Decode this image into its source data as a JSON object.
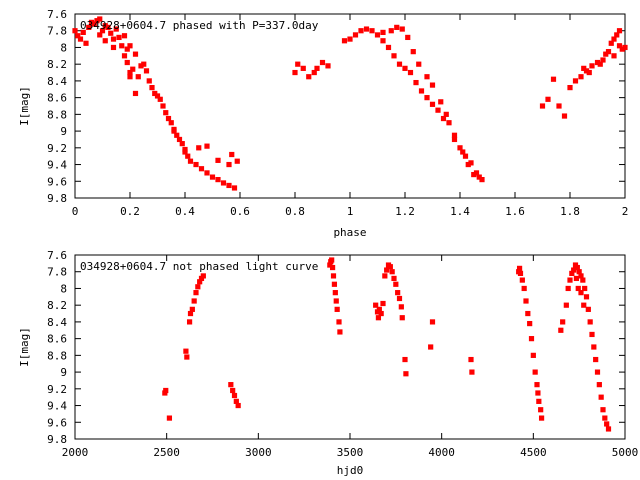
{
  "chart_data": [
    {
      "type": "scatter",
      "title": "034928+0604.7 phased with P=337.0day",
      "xlabel": "phase",
      "ylabel": "I[mag]",
      "xlim": [
        0,
        2
      ],
      "ylim": [
        9.8,
        7.6
      ],
      "y_inverted": true,
      "grid": false,
      "marker_color": "#ff0000",
      "x_ticks": [
        {
          "value": 0,
          "label": "0"
        },
        {
          "value": 0.2,
          "label": "0.2"
        },
        {
          "value": 0.4,
          "label": "0.4"
        },
        {
          "value": 0.6,
          "label": "0.6"
        },
        {
          "value": 0.8,
          "label": "0.8"
        },
        {
          "value": 1,
          "label": "1"
        },
        {
          "value": 1.2,
          "label": "1.2"
        },
        {
          "value": 1.4,
          "label": "1.4"
        },
        {
          "value": 1.6,
          "label": "1.6"
        },
        {
          "value": 1.8,
          "label": "1.8"
        },
        {
          "value": 2,
          "label": "2"
        }
      ],
      "y_ticks": [
        {
          "value": 7.6,
          "label": "7.6"
        },
        {
          "value": 7.8,
          "label": "7.8"
        },
        {
          "value": 8,
          "label": "8"
        },
        {
          "value": 8.2,
          "label": "8.2"
        },
        {
          "value": 8.4,
          "label": "8.4"
        },
        {
          "value": 8.6,
          "label": "8.6"
        },
        {
          "value": 8.8,
          "label": "8.8"
        },
        {
          "value": 9,
          "label": "9"
        },
        {
          "value": 9.2,
          "label": "9.2"
        },
        {
          "value": 9.4,
          "label": "9.4"
        },
        {
          "value": 9.6,
          "label": "9.6"
        },
        {
          "value": 9.8,
          "label": "9.8"
        }
      ],
      "points": [
        [
          0.0,
          7.8
        ],
        [
          0.01,
          7.86
        ],
        [
          0.02,
          7.9
        ],
        [
          0.03,
          7.82
        ],
        [
          0.04,
          7.95
        ],
        [
          0.05,
          7.76
        ],
        [
          0.06,
          7.7
        ],
        [
          0.07,
          7.72
        ],
        [
          0.08,
          7.68
        ],
        [
          0.09,
          7.66
        ],
        [
          0.09,
          7.85
        ],
        [
          0.1,
          7.8
        ],
        [
          0.11,
          7.74
        ],
        [
          0.12,
          7.76
        ],
        [
          0.13,
          7.83
        ],
        [
          0.14,
          7.9
        ],
        [
          0.15,
          7.78
        ],
        [
          0.16,
          7.88
        ],
        [
          0.17,
          7.98
        ],
        [
          0.18,
          7.86
        ],
        [
          0.19,
          8.02
        ],
        [
          0.2,
          7.98
        ],
        [
          0.11,
          7.92
        ],
        [
          0.14,
          8.0
        ],
        [
          0.18,
          8.1
        ],
        [
          0.19,
          8.18
        ],
        [
          0.2,
          8.3
        ],
        [
          0.21,
          8.26
        ],
        [
          0.22,
          8.08
        ],
        [
          0.23,
          8.35
        ],
        [
          0.24,
          8.22
        ],
        [
          0.25,
          8.2
        ],
        [
          0.26,
          8.28
        ],
        [
          0.27,
          8.4
        ],
        [
          0.28,
          8.48
        ],
        [
          0.29,
          8.55
        ],
        [
          0.3,
          8.58
        ],
        [
          0.31,
          8.62
        ],
        [
          0.32,
          8.7
        ],
        [
          0.33,
          8.78
        ],
        [
          0.34,
          8.85
        ],
        [
          0.35,
          8.9
        ],
        [
          0.36,
          9.0
        ],
        [
          0.37,
          9.05
        ],
        [
          0.38,
          9.1
        ],
        [
          0.39,
          9.15
        ],
        [
          0.4,
          9.22
        ],
        [
          0.41,
          9.3
        ],
        [
          0.42,
          9.36
        ],
        [
          0.44,
          9.4
        ],
        [
          0.46,
          9.45
        ],
        [
          0.48,
          9.5
        ],
        [
          0.5,
          9.55
        ],
        [
          0.52,
          9.58
        ],
        [
          0.54,
          9.62
        ],
        [
          0.56,
          9.65
        ],
        [
          0.58,
          9.68
        ],
        [
          0.2,
          8.35
        ],
        [
          0.22,
          8.55
        ],
        [
          0.36,
          8.98
        ],
        [
          0.4,
          9.25
        ],
        [
          0.48,
          9.18
        ],
        [
          0.52,
          9.35
        ],
        [
          0.56,
          9.4
        ],
        [
          0.57,
          9.28
        ],
        [
          0.59,
          9.36
        ],
        [
          0.45,
          9.2
        ],
        [
          0.8,
          8.3
        ],
        [
          0.81,
          8.2
        ],
        [
          0.83,
          8.25
        ],
        [
          0.85,
          8.35
        ],
        [
          0.87,
          8.3
        ],
        [
          0.88,
          8.25
        ],
        [
          0.9,
          8.18
        ],
        [
          0.92,
          8.22
        ],
        [
          0.98,
          7.92
        ],
        [
          1.0,
          7.9
        ],
        [
          1.02,
          7.85
        ],
        [
          1.04,
          7.8
        ],
        [
          1.06,
          7.78
        ],
        [
          1.08,
          7.8
        ],
        [
          1.1,
          7.85
        ],
        [
          1.12,
          7.92
        ],
        [
          1.14,
          8.0
        ],
        [
          1.16,
          8.1
        ],
        [
          1.18,
          8.2
        ],
        [
          1.2,
          8.25
        ],
        [
          1.22,
          8.3
        ],
        [
          1.24,
          8.42
        ],
        [
          1.26,
          8.52
        ],
        [
          1.28,
          8.6
        ],
        [
          1.3,
          8.68
        ],
        [
          1.32,
          8.75
        ],
        [
          1.34,
          8.85
        ],
        [
          1.36,
          8.9
        ],
        [
          1.38,
          9.05
        ],
        [
          1.4,
          9.2
        ],
        [
          1.42,
          9.3
        ],
        [
          1.44,
          9.38
        ],
        [
          1.46,
          9.5
        ],
        [
          1.47,
          9.55
        ],
        [
          1.12,
          7.82
        ],
        [
          1.15,
          7.8
        ],
        [
          1.17,
          7.76
        ],
        [
          1.19,
          7.78
        ],
        [
          1.21,
          7.88
        ],
        [
          1.23,
          8.05
        ],
        [
          1.25,
          8.2
        ],
        [
          1.28,
          8.35
        ],
        [
          1.3,
          8.45
        ],
        [
          1.33,
          8.65
        ],
        [
          1.35,
          8.8
        ],
        [
          1.38,
          9.1
        ],
        [
          1.41,
          9.25
        ],
        [
          1.43,
          9.4
        ],
        [
          1.45,
          9.52
        ],
        [
          1.48,
          9.58
        ],
        [
          1.7,
          8.7
        ],
        [
          1.72,
          8.62
        ],
        [
          1.74,
          8.38
        ],
        [
          1.76,
          8.7
        ],
        [
          1.78,
          8.82
        ],
        [
          1.8,
          8.48
        ],
        [
          1.82,
          8.4
        ],
        [
          1.84,
          8.35
        ],
        [
          1.86,
          8.28
        ],
        [
          1.88,
          8.22
        ],
        [
          1.9,
          8.18
        ],
        [
          1.92,
          8.15
        ],
        [
          1.94,
          8.05
        ],
        [
          1.95,
          7.95
        ],
        [
          1.96,
          7.9
        ],
        [
          1.97,
          7.85
        ],
        [
          1.98,
          7.98
        ],
        [
          1.99,
          8.02
        ],
        [
          2.0,
          8.0
        ],
        [
          1.93,
          8.08
        ],
        [
          1.85,
          8.25
        ],
        [
          1.87,
          8.3
        ],
        [
          1.91,
          8.2
        ],
        [
          1.96,
          8.1
        ],
        [
          1.98,
          7.8
        ]
      ]
    },
    {
      "type": "scatter",
      "title": "034928+0604.7 not phased light curve",
      "xlabel": "hjd0",
      "ylabel": "I[mag]",
      "xlim": [
        2000,
        5000
      ],
      "ylim": [
        9.8,
        7.6
      ],
      "y_inverted": true,
      "grid": false,
      "marker_color": "#ff0000",
      "x_ticks": [
        {
          "value": 2000,
          "label": "2000"
        },
        {
          "value": 2500,
          "label": "2500"
        },
        {
          "value": 3000,
          "label": "3000"
        },
        {
          "value": 3500,
          "label": "3500"
        },
        {
          "value": 4000,
          "label": "4000"
        },
        {
          "value": 4500,
          "label": "4500"
        },
        {
          "value": 5000,
          "label": "5000"
        }
      ],
      "y_ticks": [
        {
          "value": 7.6,
          "label": "7.6"
        },
        {
          "value": 7.8,
          "label": "7.8"
        },
        {
          "value": 8,
          "label": "8"
        },
        {
          "value": 8.2,
          "label": "8.2"
        },
        {
          "value": 8.4,
          "label": "8.4"
        },
        {
          "value": 8.6,
          "label": "8.6"
        },
        {
          "value": 8.8,
          "label": "8.8"
        },
        {
          "value": 9,
          "label": "9"
        },
        {
          "value": 9.2,
          "label": "9.2"
        },
        {
          "value": 9.4,
          "label": "9.4"
        },
        {
          "value": 9.6,
          "label": "9.6"
        },
        {
          "value": 9.8,
          "label": "9.8"
        }
      ],
      "points": [
        [
          2490,
          9.25
        ],
        [
          2495,
          9.22
        ],
        [
          2515,
          9.55
        ],
        [
          2605,
          8.75
        ],
        [
          2610,
          8.82
        ],
        [
          2625,
          8.4
        ],
        [
          2630,
          8.3
        ],
        [
          2640,
          8.25
        ],
        [
          2650,
          8.15
        ],
        [
          2660,
          8.05
        ],
        [
          2670,
          7.98
        ],
        [
          2680,
          7.92
        ],
        [
          2690,
          7.88
        ],
        [
          2700,
          7.85
        ],
        [
          2850,
          9.15
        ],
        [
          2860,
          9.22
        ],
        [
          2870,
          9.28
        ],
        [
          2880,
          9.35
        ],
        [
          2890,
          9.4
        ],
        [
          3390,
          7.72
        ],
        [
          3395,
          7.68
        ],
        [
          3400,
          7.66
        ],
        [
          3405,
          7.75
        ],
        [
          3410,
          7.85
        ],
        [
          3415,
          7.95
        ],
        [
          3420,
          8.05
        ],
        [
          3425,
          8.15
        ],
        [
          3430,
          8.25
        ],
        [
          3440,
          8.4
        ],
        [
          3445,
          8.52
        ],
        [
          3640,
          8.2
        ],
        [
          3650,
          8.28
        ],
        [
          3655,
          8.35
        ],
        [
          3660,
          8.25
        ],
        [
          3670,
          8.3
        ],
        [
          3680,
          8.18
        ],
        [
          3690,
          7.85
        ],
        [
          3700,
          7.78
        ],
        [
          3710,
          7.72
        ],
        [
          3720,
          7.74
        ],
        [
          3730,
          7.8
        ],
        [
          3740,
          7.88
        ],
        [
          3750,
          7.95
        ],
        [
          3760,
          8.05
        ],
        [
          3770,
          8.12
        ],
        [
          3780,
          8.22
        ],
        [
          3785,
          8.35
        ],
        [
          3800,
          8.85
        ],
        [
          3805,
          9.02
        ],
        [
          3940,
          8.7
        ],
        [
          3950,
          8.4
        ],
        [
          4160,
          8.85
        ],
        [
          4165,
          9.0
        ],
        [
          4420,
          7.8
        ],
        [
          4425,
          7.76
        ],
        [
          4430,
          7.82
        ],
        [
          4440,
          7.9
        ],
        [
          4450,
          8.0
        ],
        [
          4460,
          8.15
        ],
        [
          4470,
          8.3
        ],
        [
          4480,
          8.42
        ],
        [
          4490,
          8.6
        ],
        [
          4500,
          8.8
        ],
        [
          4510,
          9.0
        ],
        [
          4520,
          9.15
        ],
        [
          4525,
          9.25
        ],
        [
          4530,
          9.35
        ],
        [
          4540,
          9.45
        ],
        [
          4545,
          9.55
        ],
        [
          4650,
          8.5
        ],
        [
          4660,
          8.4
        ],
        [
          4680,
          8.2
        ],
        [
          4690,
          8.0
        ],
        [
          4700,
          7.9
        ],
        [
          4710,
          7.82
        ],
        [
          4720,
          7.78
        ],
        [
          4730,
          7.72
        ],
        [
          4740,
          7.75
        ],
        [
          4750,
          7.8
        ],
        [
          4760,
          7.85
        ],
        [
          4770,
          7.9
        ],
        [
          4780,
          8.0
        ],
        [
          4790,
          8.1
        ],
        [
          4800,
          8.25
        ],
        [
          4810,
          8.4
        ],
        [
          4820,
          8.55
        ],
        [
          4830,
          8.7
        ],
        [
          4840,
          8.85
        ],
        [
          4850,
          9.0
        ],
        [
          4860,
          9.15
        ],
        [
          4870,
          9.3
        ],
        [
          4880,
          9.45
        ],
        [
          4890,
          9.55
        ],
        [
          4900,
          9.62
        ],
        [
          4910,
          9.68
        ],
        [
          4735,
          7.88
        ],
        [
          4745,
          8.0
        ],
        [
          4760,
          8.05
        ],
        [
          4775,
          8.2
        ]
      ]
    }
  ]
}
